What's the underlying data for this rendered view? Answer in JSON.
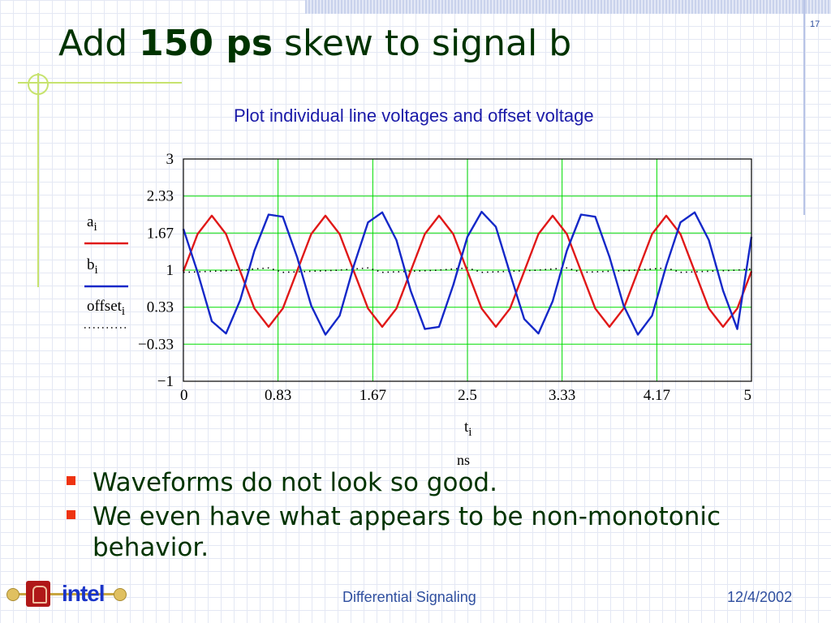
{
  "slide": {
    "number": "17",
    "title_pre": "Add ",
    "title_bold": "150 ps",
    "title_post": " skew to signal b"
  },
  "bullets": [
    "Waveforms do not look so good.",
    "We even have what appears to be non-monotonic behavior."
  ],
  "footer": {
    "center": "Differential Signaling",
    "date": "12/4/2002",
    "logo_text": "intel"
  },
  "colors": {
    "title": "#003300",
    "plot_title": "#1a1aa8",
    "bullet_marker": "#ee3311",
    "grid": "#00dd00",
    "series_a": "#e01818",
    "series_b": "#1428c8",
    "offset": "#000000"
  },
  "icons": {
    "bullet": "square-bullet-icon",
    "logo": "intel-logo",
    "seal": "stanford-seal-icon"
  },
  "chart_data": {
    "type": "line",
    "title": "Plot individual line voltages and offset voltage",
    "xlabel": "t",
    "xlabel_sub": "i",
    "xunit": "ns",
    "xlim": [
      0,
      5
    ],
    "ylim": [
      -1,
      3
    ],
    "x_ticks": [
      "0",
      "0.83",
      "1.67",
      "2.5",
      "3.33",
      "4.17",
      "5"
    ],
    "x_tick_values": [
      0,
      0.833,
      1.667,
      2.5,
      3.333,
      4.167,
      5
    ],
    "y_ticks": [
      "3",
      "2.33",
      "1.67",
      "1",
      "0.33",
      "−0.33",
      "−1"
    ],
    "y_tick_values": [
      3,
      2.333,
      1.667,
      1,
      0.333,
      -0.333,
      -1
    ],
    "grid": true,
    "legend_position": "left",
    "series": [
      {
        "name": "a",
        "name_sub": "i",
        "style": "solid",
        "color": "#e01818",
        "x": [
          0,
          0.125,
          0.25,
          0.375,
          0.5,
          0.625,
          0.75,
          0.875,
          1.0,
          1.125,
          1.25,
          1.375,
          1.5,
          1.625,
          1.75,
          1.875,
          2.0,
          2.125,
          2.25,
          2.375,
          2.5,
          2.625,
          2.75,
          2.875,
          3.0,
          3.125,
          3.25,
          3.375,
          3.5,
          3.625,
          3.75,
          3.875,
          4.0,
          4.125,
          4.25,
          4.375,
          4.5,
          4.625,
          4.75,
          4.875,
          5.0
        ],
        "y": [
          0.98,
          1.65,
          1.98,
          1.65,
          0.98,
          0.31,
          -0.02,
          0.31,
          0.98,
          1.65,
          1.98,
          1.65,
          0.98,
          0.31,
          -0.02,
          0.31,
          0.98,
          1.65,
          1.98,
          1.65,
          0.98,
          0.31,
          -0.02,
          0.31,
          0.98,
          1.65,
          1.98,
          1.65,
          0.98,
          0.31,
          -0.02,
          0.31,
          0.98,
          1.65,
          1.98,
          1.65,
          0.98,
          0.31,
          -0.02,
          0.31,
          0.98
        ]
      },
      {
        "name": "b",
        "name_sub": "i",
        "style": "solid",
        "color": "#1428c8",
        "x": [
          0,
          0.125,
          0.25,
          0.375,
          0.5,
          0.625,
          0.75,
          0.875,
          1.0,
          1.125,
          1.25,
          1.375,
          1.5,
          1.625,
          1.75,
          1.875,
          2.0,
          2.125,
          2.25,
          2.375,
          2.5,
          2.625,
          2.75,
          2.875,
          3.0,
          3.125,
          3.25,
          3.375,
          3.5,
          3.625,
          3.75,
          3.875,
          4.0,
          4.125,
          4.25,
          4.375,
          4.5,
          4.625,
          4.75,
          4.875,
          5.0
        ],
        "y": [
          1.74,
          0.96,
          0.08,
          -0.14,
          0.46,
          1.35,
          2.0,
          1.96,
          1.24,
          0.36,
          -0.16,
          0.18,
          1.08,
          1.86,
          2.04,
          1.54,
          0.63,
          -0.06,
          -0.02,
          0.73,
          1.6,
          2.05,
          1.78,
          0.94,
          0.12,
          -0.14,
          0.44,
          1.35,
          2.0,
          1.96,
          1.24,
          0.36,
          -0.16,
          0.18,
          1.08,
          1.86,
          2.04,
          1.54,
          0.63,
          -0.06,
          1.6
        ]
      },
      {
        "name": "offset",
        "name_sub": "i",
        "style": "dotted",
        "color": "#000000",
        "x": [
          0,
          0.125,
          0.25,
          0.375,
          0.5,
          0.625,
          0.75,
          0.875,
          1.0,
          1.125,
          1.25,
          1.375,
          1.5,
          1.625,
          1.75,
          1.875,
          2.0,
          2.125,
          2.25,
          2.375,
          2.5,
          2.625,
          2.75,
          2.875,
          3.0,
          3.125,
          3.25,
          3.375,
          3.5,
          3.625,
          3.75,
          3.875,
          4.0,
          4.125,
          4.25,
          4.375,
          4.5,
          4.625,
          4.75,
          4.875,
          5.0
        ],
        "y": [
          0.96,
          0.97,
          0.98,
          0.99,
          1.0,
          1.02,
          1.04,
          0.96,
          0.97,
          0.98,
          0.99,
          1.0,
          1.02,
          1.04,
          0.96,
          0.97,
          0.98,
          0.99,
          1.0,
          1.02,
          1.04,
          0.96,
          0.97,
          0.98,
          0.99,
          1.0,
          1.02,
          1.04,
          0.96,
          0.97,
          0.98,
          0.99,
          1.0,
          1.02,
          1.04,
          0.96,
          0.97,
          0.98,
          0.99,
          1.0,
          1.02
        ]
      }
    ]
  }
}
